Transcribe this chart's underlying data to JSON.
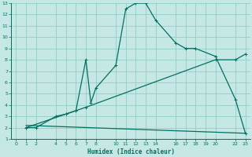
{
  "bg_color": "#c5e8e5",
  "grid_color": "#88c8c0",
  "line_color": "#007060",
  "line_width": 0.9,
  "marker_size": 2.5,
  "xlabel": "Humidex (Indice chaleur)",
  "xlim": [
    -0.5,
    23.5
  ],
  "ylim": [
    1,
    13
  ],
  "xticks": [
    0,
    1,
    2,
    4,
    5,
    6,
    7,
    8,
    10,
    11,
    12,
    13,
    14,
    16,
    17,
    18,
    19,
    20,
    22,
    23
  ],
  "yticks": [
    1,
    2,
    3,
    4,
    5,
    6,
    7,
    8,
    9,
    10,
    11,
    12,
    13
  ],
  "curve1_x": [
    1,
    2,
    4,
    5,
    6,
    7,
    7.5,
    8,
    10,
    11,
    12,
    13,
    14,
    16,
    17,
    18,
    20,
    22,
    23
  ],
  "curve1_y": [
    2,
    2,
    3,
    3.2,
    3.5,
    8.0,
    4.2,
    5.5,
    7.5,
    12.5,
    13.0,
    13.0,
    11.5,
    9.5,
    9.0,
    9.0,
    8.3,
    4.5,
    1.5
  ],
  "curve2_x": [
    1,
    5,
    6,
    7,
    20,
    22,
    23
  ],
  "curve2_y": [
    2,
    3.2,
    3.5,
    3.8,
    8.0,
    8.0,
    8.5
  ],
  "curve3_x": [
    1,
    23
  ],
  "curve3_y": [
    2.2,
    1.5
  ]
}
